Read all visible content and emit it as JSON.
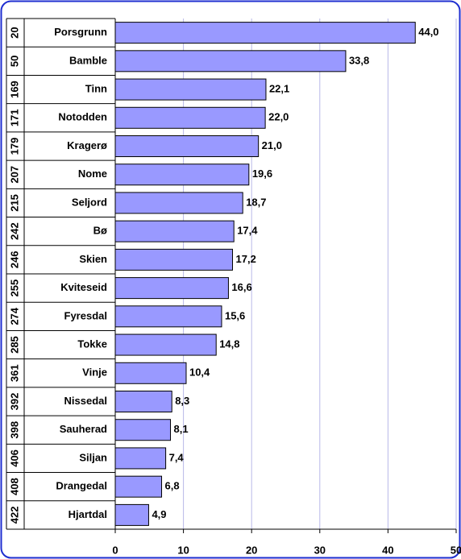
{
  "chart_data": {
    "type": "bar",
    "orientation": "horizontal",
    "ranks": [
      "20",
      "50",
      "169",
      "171",
      "179",
      "207",
      "215",
      "242",
      "246",
      "255",
      "274",
      "285",
      "361",
      "392",
      "398",
      "406",
      "408",
      "422"
    ],
    "categories": [
      "Porsgrunn",
      "Bamble",
      "Tinn",
      "Notodden",
      "Kragerø",
      "Nome",
      "Seljord",
      "Bø",
      "Skien",
      "Kviteseid",
      "Fyresdal",
      "Tokke",
      "Vinje",
      "Nissedal",
      "Sauherad",
      "Siljan",
      "Drangedal",
      "Hjartdal"
    ],
    "values": [
      44.0,
      33.8,
      22.1,
      22.0,
      21.0,
      19.6,
      18.7,
      17.4,
      17.2,
      16.6,
      15.6,
      14.8,
      10.4,
      8.3,
      8.1,
      7.4,
      6.8,
      4.9
    ],
    "value_labels": [
      "44,0",
      "33,8",
      "22,1",
      "22,0",
      "21,0",
      "19,6",
      "18,7",
      "17,4",
      "17,2",
      "16,6",
      "15,6",
      "14,8",
      "10,4",
      "8,3",
      "8,1",
      "7,4",
      "6,8",
      "4,9"
    ],
    "color": "#9999ff",
    "xlim": [
      0,
      50
    ],
    "xticks": [
      0,
      10,
      20,
      30,
      40,
      50
    ],
    "grid": true
  }
}
